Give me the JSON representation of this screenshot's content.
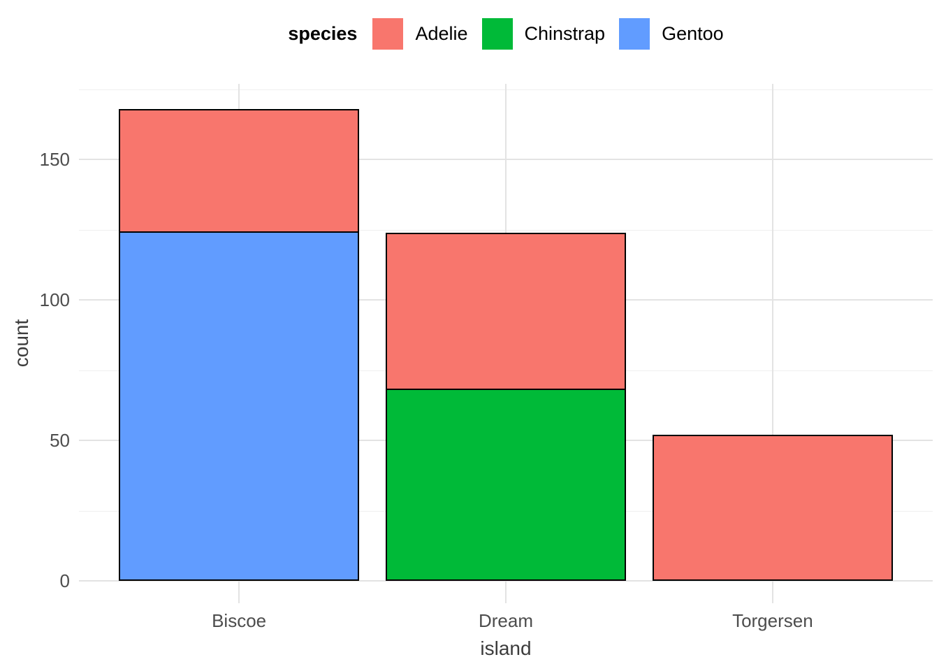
{
  "legend": {
    "title": "species",
    "items": [
      {
        "label": "Adelie",
        "color": "#F8766D"
      },
      {
        "label": "Chinstrap",
        "color": "#00BA38"
      },
      {
        "label": "Gentoo",
        "color": "#619CFF"
      }
    ]
  },
  "axes": {
    "x_title": "island",
    "y_title": "count",
    "y_tick_labels": [
      "0",
      "50",
      "100",
      "150"
    ],
    "x_tick_labels": [
      "Biscoe",
      "Dream",
      "Torgersen"
    ]
  },
  "chart_data": {
    "type": "bar",
    "subtype": "stacked",
    "title": "",
    "xlabel": "island",
    "ylabel": "count",
    "categories": [
      "Biscoe",
      "Dream",
      "Torgersen"
    ],
    "series": [
      {
        "name": "Adelie",
        "color": "#F8766D",
        "values": [
          44,
          56,
          52
        ]
      },
      {
        "name": "Chinstrap",
        "color": "#00BA38",
        "values": [
          0,
          68,
          0
        ]
      },
      {
        "name": "Gentoo",
        "color": "#619CFF",
        "values": [
          124,
          0,
          0
        ]
      }
    ],
    "stack_order_top_to_bottom": [
      "Adelie",
      "Chinstrap",
      "Gentoo"
    ],
    "stack_totals": [
      168,
      124,
      52
    ],
    "y_ticks_major": [
      0,
      50,
      100,
      150
    ],
    "y_ticks_minor": [
      25,
      75,
      125,
      175
    ],
    "ylim": [
      -8,
      177
    ],
    "bar_width_fraction": 0.9,
    "bar_outline_color": "#000000",
    "legend_position": "top",
    "legend_title": "species",
    "grid": {
      "horizontal_major": true,
      "horizontal_minor": true,
      "vertical_major_at_categories": true
    },
    "colors": {
      "background": "#FFFFFF",
      "grid_major": "#E3E3E3",
      "grid_minor": "#EFEFEF",
      "tick_label": "#4D4D4D",
      "axis_title": "#3C3C3C",
      "legend_text": "#000000"
    }
  }
}
